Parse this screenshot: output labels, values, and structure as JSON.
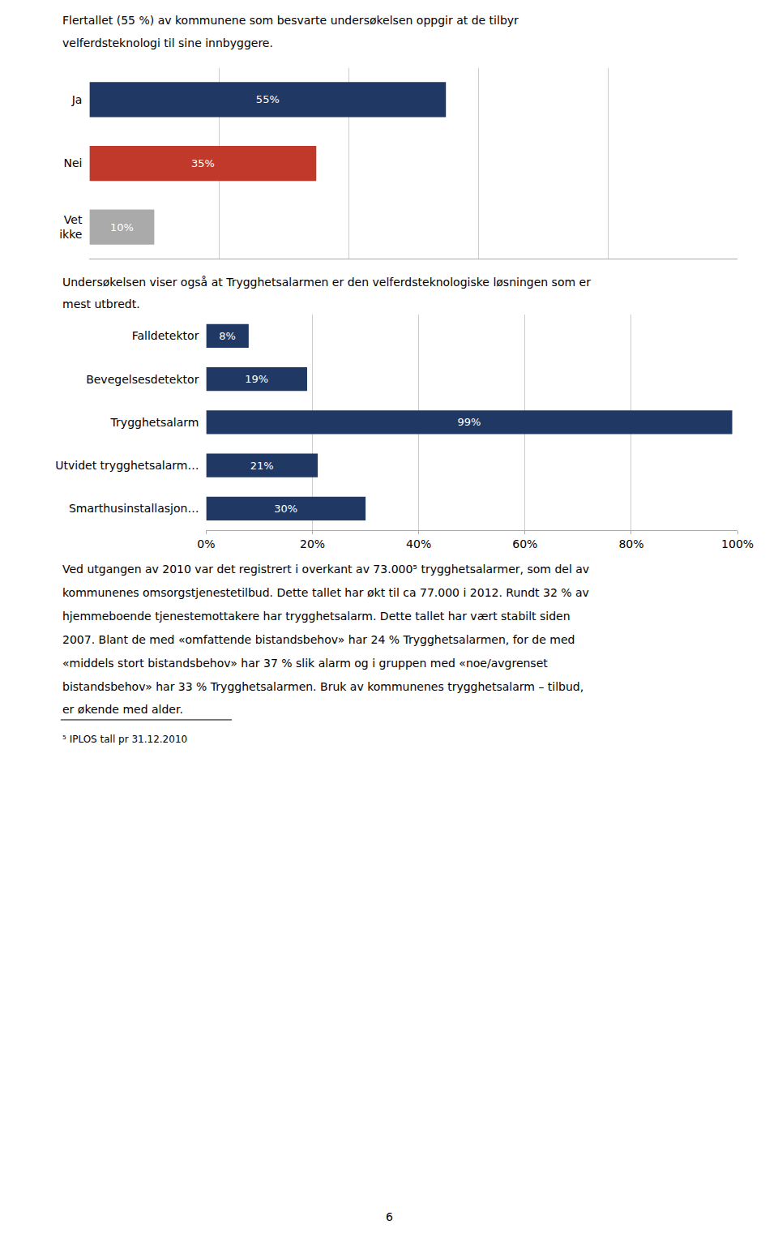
{
  "chart_data": [
    {
      "type": "bar",
      "orientation": "horizontal",
      "subtitle": "Flertallet (55 %) av kommunene som besvarte undersøkelsen oppgir at de tilbyr\nvelferdsteknologi til sine innbyggere.",
      "categories": [
        "Ja",
        "Nei",
        "Vet\nikke"
      ],
      "values": [
        55,
        35,
        10
      ],
      "colors": [
        "#1F3864",
        "#C0392B",
        "#AAAAAA"
      ],
      "data_labels": true,
      "value_labels": [
        "55%",
        "35%",
        "10%"
      ],
      "xlim": [
        0,
        100
      ],
      "xticks": [
        0,
        20,
        40,
        60,
        80,
        100
      ],
      "grid": true,
      "tick_labels": "y"
    },
    {
      "type": "bar",
      "orientation": "horizontal",
      "subtitle": "Undersøkelsen viser også at Trygghetsalarmen er den velferdsteknologiske løsningen som er\nmest utbredt.",
      "categories": [
        "Falldetektor",
        "Bevegelsesdetektor",
        "Trygghetsalarm",
        "Utvidet trygghetsalarm…",
        "Smarthusinstallasjon…"
      ],
      "values": [
        8,
        19,
        99,
        21,
        30
      ],
      "color": "#1F3864",
      "data_labels": true,
      "value_labels": [
        "8%",
        "19%",
        "99%",
        "21%",
        "30%"
      ],
      "xlim": [
        0,
        100
      ],
      "xticks": [
        {
          "value": 0,
          "label": "0%"
        },
        {
          "value": 20,
          "label": "20%"
        },
        {
          "value": 40,
          "label": "40%"
        },
        {
          "value": 60,
          "label": "60%"
        },
        {
          "value": 80,
          "label": "80%"
        },
        {
          "value": 100,
          "label": "100%"
        }
      ],
      "grid": true,
      "annotations": [
        [
          "Ved utgangen av 2010 var det registrert i overkant av 73.000⁵ trygghetsalarmer, som del av",
          "kommunenes omsorgstjenestetilbud. Dette tallet har økt til ca 77.000 i 2012. Rundt 32 % av",
          "hjemmeboende tjenestemottakere har trygghetsalarm. Dette tallet har vært stabilt siden",
          "2007. Blant de med «omfattende bistandsbehov» har 24 % Trygghetsalarmen, for de med",
          "«middels stort bistandsbehov» har 37 % slik alarm og i gruppen med «noe/avgrenset",
          "bistandsbehov» har 33 % Trygghetsalarmen. Bruk av kommunenes trygghetsalarm – tilbud,",
          "er økende med alder."
        ],
        [
          "⁵ IPLOS tall pr 31.12.2010"
        ],
        [
          "6"
        ]
      ]
    }
  ]
}
